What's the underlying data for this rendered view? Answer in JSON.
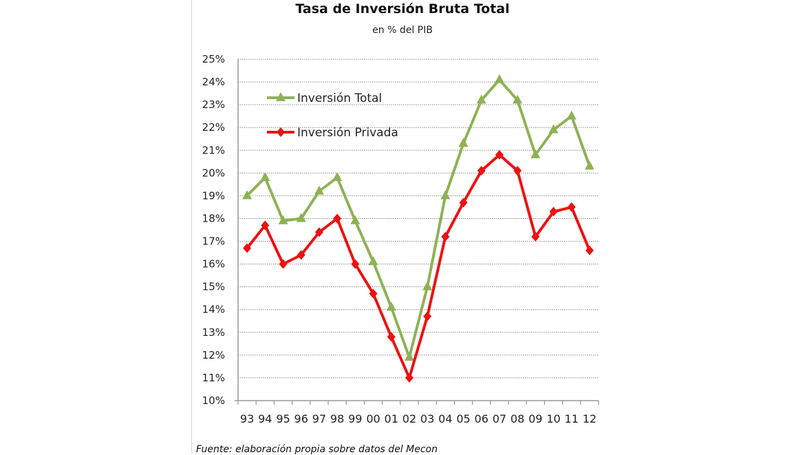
{
  "chart_data": {
    "type": "line",
    "title": "Tasa de Inversión Bruta Total",
    "subtitle": "en % del PIB",
    "source": "Fuente: elaboración propia sobre datos del Mecon",
    "categories": [
      "93",
      "94",
      "95",
      "96",
      "97",
      "98",
      "99",
      "00",
      "01",
      "02",
      "03",
      "04",
      "05",
      "06",
      "07",
      "08",
      "09",
      "10",
      "11",
      "12"
    ],
    "ylim": [
      10,
      25
    ],
    "yticks": [
      "10%",
      "11%",
      "12%",
      "13%",
      "14%",
      "15%",
      "16%",
      "17%",
      "18%",
      "19%",
      "20%",
      "21%",
      "22%",
      "23%",
      "24%",
      "25%"
    ],
    "grid": true,
    "legend_position": "top-left",
    "series": [
      {
        "name": "Inversión Total",
        "color": "#8db255",
        "marker": "triangle",
        "values": [
          19.0,
          19.8,
          17.9,
          18.0,
          19.2,
          19.8,
          17.9,
          16.1,
          14.1,
          11.9,
          15.0,
          19.0,
          21.3,
          23.2,
          24.1,
          23.2,
          20.8,
          21.9,
          22.5,
          20.3
        ]
      },
      {
        "name": "Inversión Privada",
        "color": "#ee1111",
        "marker": "diamond",
        "values": [
          16.7,
          17.7,
          16.0,
          16.4,
          17.4,
          18.0,
          16.0,
          14.7,
          12.8,
          11.0,
          13.7,
          17.2,
          18.7,
          20.1,
          20.8,
          20.1,
          17.2,
          18.3,
          18.5,
          16.6
        ]
      }
    ]
  }
}
